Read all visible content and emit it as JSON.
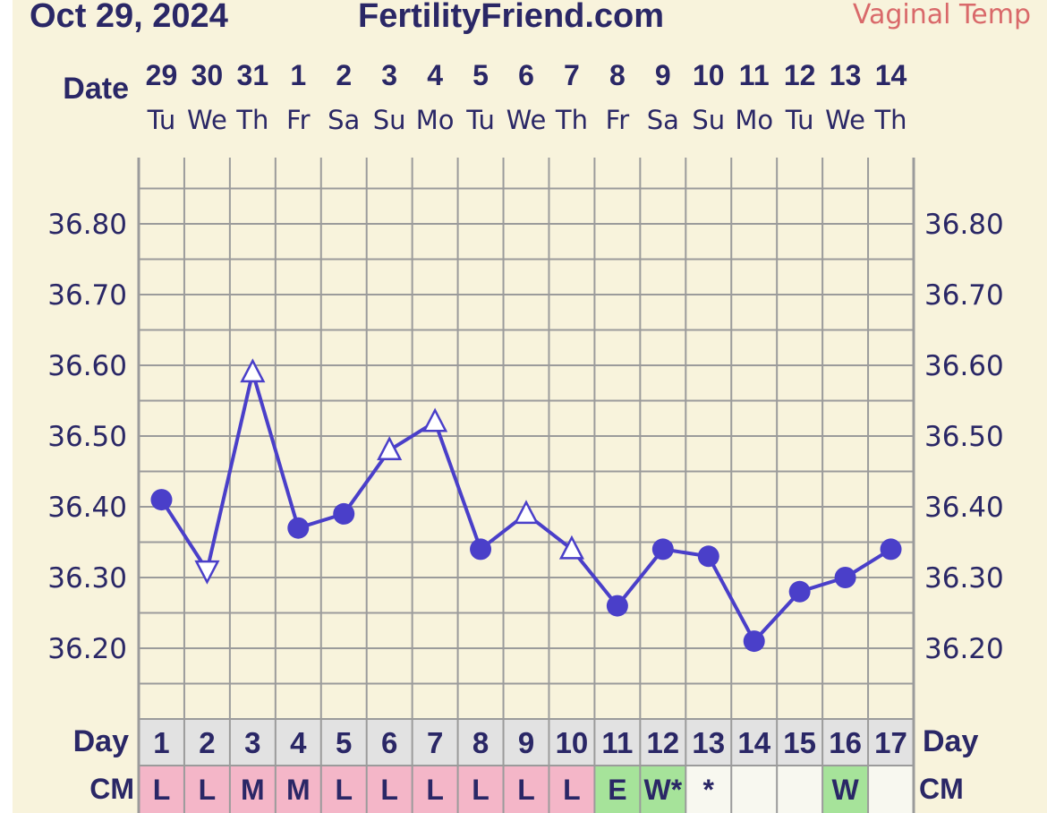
{
  "header": {
    "date": "Oct 29, 2024",
    "site": "FertilityFriend.com",
    "temp_type": "Vaginal Temp"
  },
  "labels": {
    "date_row": "Date",
    "day_row": "Day",
    "cm_row": "CM"
  },
  "chart_data": {
    "type": "line",
    "title": "",
    "xlabel": "",
    "ylabel": "",
    "ylim": [
      36.11,
      36.91
    ],
    "y_ticks": [
      36.8,
      36.7,
      36.6,
      36.5,
      36.4,
      36.3,
      36.2
    ],
    "y_tick_labels": [
      "36.80",
      "36.70",
      "36.60",
      "36.50",
      "36.40",
      "36.30",
      "36.20"
    ],
    "dates": [
      "29",
      "30",
      "31",
      "1",
      "2",
      "3",
      "4",
      "5",
      "6",
      "7",
      "8",
      "9",
      "10",
      "11",
      "12",
      "13",
      "14"
    ],
    "weekdays": [
      "Tu",
      "We",
      "Th",
      "Fr",
      "Sa",
      "Su",
      "Mo",
      "Tu",
      "We",
      "Th",
      "Fr",
      "Sa",
      "Su",
      "Mo",
      "Tu",
      "We",
      "Th"
    ],
    "cycle_days": [
      "1",
      "2",
      "3",
      "4",
      "5",
      "6",
      "7",
      "8",
      "9",
      "10",
      "11",
      "12",
      "13",
      "14",
      "15",
      "16",
      "17"
    ],
    "temperatures": [
      36.41,
      36.31,
      36.59,
      36.37,
      36.39,
      36.48,
      36.52,
      36.34,
      36.39,
      36.34,
      36.26,
      36.34,
      36.33,
      36.21,
      36.28,
      36.3,
      36.34
    ],
    "markers": [
      "dot",
      "triangle-down",
      "triangle-up",
      "dot",
      "dot",
      "triangle-up",
      "triangle-up",
      "dot",
      "triangle-up",
      "triangle-up",
      "dot",
      "dot",
      "dot",
      "dot",
      "dot",
      "dot",
      "dot"
    ],
    "cm_values": [
      "L",
      "L",
      "M",
      "M",
      "L",
      "L",
      "L",
      "L",
      "L",
      "L",
      "E",
      "W*",
      "*",
      "",
      "",
      "W",
      ""
    ],
    "cm_colors": [
      "#f4b6c8",
      "#f4b6c8",
      "#f4b6c8",
      "#f4b6c8",
      "#f4b6c8",
      "#f4b6c8",
      "#f4b6c8",
      "#f4b6c8",
      "#f4b6c8",
      "#f4b6c8",
      "#a6e39a",
      "#a6e39a",
      "#f8f8f0",
      "#f8f8f0",
      "#f8f8f0",
      "#a6e39a",
      "#f8f8f0"
    ],
    "series_color": "#4a3fc9"
  },
  "colors": {
    "background": "#f8f3dc",
    "text": "#2a2766",
    "temp_type": "#d9696a",
    "grid": "#9b9b9b",
    "day_row_bg": "#e2e2e2"
  }
}
